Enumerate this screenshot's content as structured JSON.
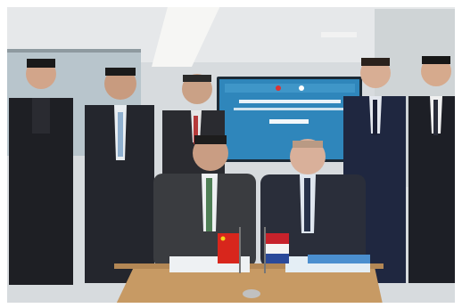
{
  "photo": {
    "description_colors": {
      "wall": "#d9dde0",
      "window": "#b9c7cf",
      "screen_bg": "#2e7fb3",
      "suit_dark": "#1c1d22",
      "table": "#c99a63",
      "china_flag": "#d8261c",
      "nl_red": "#c7222b",
      "nl_blue": "#2b4a9a"
    },
    "screen_lines": [
      "",
      ""
    ]
  }
}
